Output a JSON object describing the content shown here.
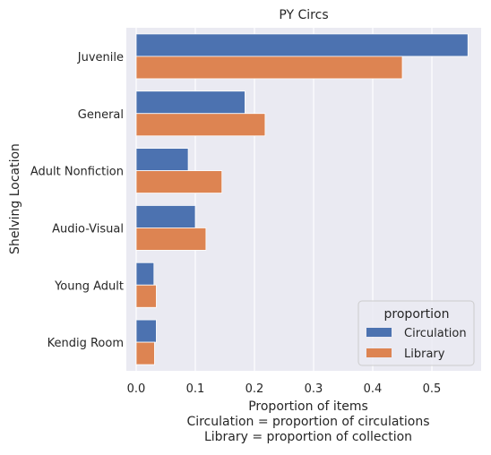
{
  "chart_data": {
    "type": "bar",
    "orientation": "horizontal",
    "title": "PY Circs",
    "xlabel": "Proportion of items",
    "xlabel_notes": [
      "Circulation = proportion of circulations",
      "Library = proportion of collection"
    ],
    "ylabel": "Shelving Location",
    "categories": [
      "Juvenile",
      "General",
      "Adult Nonfiction",
      "Audio-Visual",
      "Young Adult",
      "Kendig Room"
    ],
    "series": [
      {
        "name": "Circulation",
        "color": "#4c72b0",
        "values": [
          0.561,
          0.184,
          0.088,
          0.1,
          0.03,
          0.034
        ]
      },
      {
        "name": "Library",
        "color": "#dd8452",
        "values": [
          0.45,
          0.218,
          0.145,
          0.118,
          0.034,
          0.031
        ]
      }
    ],
    "xlim": [
      0,
      0.58
    ],
    "xticks": [
      0.0,
      0.1,
      0.2,
      0.3,
      0.4,
      0.5
    ],
    "xtick_labels": [
      "0.0",
      "0.1",
      "0.2",
      "0.3",
      "0.4",
      "0.5"
    ],
    "grid": true,
    "legend": {
      "title": "proportion",
      "placement": "lower-right"
    },
    "background": "#eaeaf2"
  }
}
